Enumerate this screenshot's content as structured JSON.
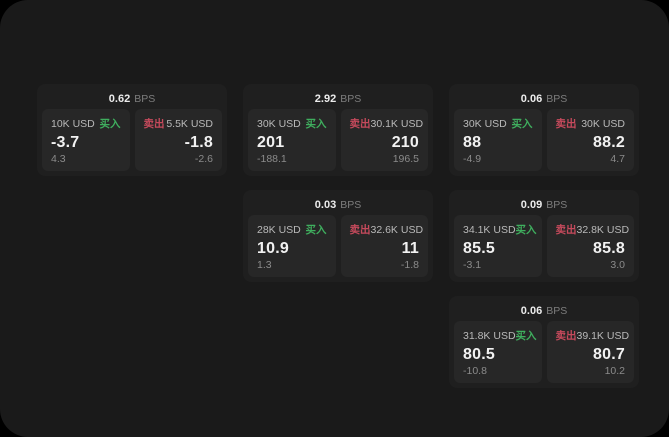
{
  "window": {
    "background": "#1a1a1a"
  },
  "colors": {
    "buy": "#3fae5e",
    "sell": "#c64a5c",
    "card_bg": "#1f1f1f",
    "panel_bg": "#272727",
    "price_text": "#f2f2f2",
    "muted_text": "#8b8b8b",
    "amount_text": "#b9b9b9"
  },
  "labels": {
    "bps": "BPS",
    "buy": "买入",
    "sell": "卖出"
  },
  "cards": [
    {
      "row": 1,
      "col": 1,
      "bps": "0.62",
      "buy": {
        "amount": "10K USD",
        "price": "-3.7",
        "delta": "4.3"
      },
      "sell": {
        "amount": "5.5K USD",
        "price": "-1.8",
        "delta": "-2.6"
      }
    },
    {
      "row": 1,
      "col": 2,
      "bps": "2.92",
      "buy": {
        "amount": "30K USD",
        "price": "201",
        "delta": "-188.1"
      },
      "sell": {
        "amount": "30.1K USD",
        "price": "210",
        "delta": "196.5"
      }
    },
    {
      "row": 1,
      "col": 3,
      "bps": "0.06",
      "buy": {
        "amount": "30K USD",
        "price": "88",
        "delta": "-4.9"
      },
      "sell": {
        "amount": "30K USD",
        "price": "88.2",
        "delta": "4.7"
      }
    },
    {
      "row": 2,
      "col": 2,
      "bps": "0.03",
      "buy": {
        "amount": "28K USD",
        "price": "10.9",
        "delta": "1.3"
      },
      "sell": {
        "amount": "32.6K USD",
        "price": "11",
        "delta": "-1.8"
      }
    },
    {
      "row": 2,
      "col": 3,
      "bps": "0.09",
      "buy": {
        "amount": "34.1K USD",
        "price": "85.5",
        "delta": "-3.1"
      },
      "sell": {
        "amount": "32.8K USD",
        "price": "85.8",
        "delta": "3.0"
      }
    },
    {
      "row": 3,
      "col": 3,
      "bps": "0.06",
      "buy": {
        "amount": "31.8K USD",
        "price": "80.5",
        "delta": "-10.8"
      },
      "sell": {
        "amount": "39.1K USD",
        "price": "80.7",
        "delta": "10.2"
      }
    }
  ]
}
